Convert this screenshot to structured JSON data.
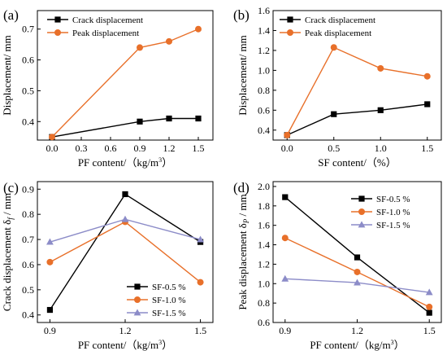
{
  "figure": {
    "colors": {
      "black": "#000000",
      "orange": "#E8702A",
      "blue": "#8C8CC8"
    }
  },
  "chart_data": [
    {
      "panel_label": "(a)",
      "type": "line",
      "xlabel": "PF content/（kg/m³）",
      "ylabel": "Displacement/ mm",
      "xlim": [
        -0.15,
        1.65
      ],
      "ylim": [
        0.34,
        0.76
      ],
      "xticks": [
        0.0,
        0.3,
        0.6,
        0.9,
        1.2,
        1.5
      ],
      "xtick_labels": [
        "0.0",
        "0.3",
        "0.6",
        "0.9",
        "1.2",
        "1.5"
      ],
      "yticks": [
        0.4,
        0.5,
        0.6,
        0.7
      ],
      "ytick_labels": [
        "0.4",
        "0.5",
        "0.6",
        "0.7"
      ],
      "legend_position": "top-left",
      "series": [
        {
          "name": "Crack displacement",
          "color": "#000000",
          "marker": "square",
          "x": [
            0.0,
            0.9,
            1.2,
            1.5
          ],
          "y": [
            0.35,
            0.4,
            0.41,
            0.41
          ]
        },
        {
          "name": "Peak displacement",
          "color": "#E8702A",
          "marker": "circle",
          "x": [
            0.0,
            0.9,
            1.2,
            1.5
          ],
          "y": [
            0.35,
            0.64,
            0.66,
            0.7
          ]
        }
      ]
    },
    {
      "panel_label": "(b)",
      "type": "line",
      "xlabel": "SF content/（%）",
      "ylabel": "Displacement/ mm",
      "xlim": [
        -0.15,
        1.65
      ],
      "ylim": [
        0.3,
        1.6
      ],
      "xticks": [
        0.0,
        0.5,
        1.0,
        1.5
      ],
      "xtick_labels": [
        "0.0",
        "0.5",
        "1.0",
        "1.5"
      ],
      "yticks": [
        0.4,
        0.6,
        0.8,
        1.0,
        1.2,
        1.4,
        1.6
      ],
      "ytick_labels": [
        "0.4",
        "0.6",
        "0.8",
        "1.0",
        "1.2",
        "1.4",
        "1.6"
      ],
      "legend_position": "top-left",
      "series": [
        {
          "name": "Crack displacement",
          "color": "#000000",
          "marker": "square",
          "x": [
            0.0,
            0.5,
            1.0,
            1.5
          ],
          "y": [
            0.35,
            0.56,
            0.6,
            0.66
          ]
        },
        {
          "name": "Peak displacement",
          "color": "#E8702A",
          "marker": "circle",
          "x": [
            0.0,
            0.5,
            1.0,
            1.5
          ],
          "y": [
            0.35,
            1.23,
            1.02,
            0.94
          ]
        }
      ]
    },
    {
      "panel_label": "(c)",
      "type": "line",
      "xlabel": "PF content/（kg/m³）",
      "ylabel": "Crack displacement δ_f / mm",
      "xlim": [
        0.85,
        1.55
      ],
      "ylim": [
        0.37,
        0.93
      ],
      "xticks": [
        0.9,
        1.2,
        1.5
      ],
      "xtick_labels": [
        "0.9",
        "1.2",
        "1.5"
      ],
      "yticks": [
        0.4,
        0.5,
        0.6,
        0.7,
        0.8,
        0.9
      ],
      "ytick_labels": [
        "0.4",
        "0.5",
        "0.6",
        "0.7",
        "0.8",
        "0.9"
      ],
      "legend_position": "bottom-right",
      "series": [
        {
          "name": "SF-0.5 %",
          "color": "#000000",
          "marker": "square",
          "x": [
            0.9,
            1.2,
            1.5
          ],
          "y": [
            0.42,
            0.88,
            0.69
          ]
        },
        {
          "name": "SF-1.0 %",
          "color": "#E8702A",
          "marker": "circle",
          "x": [
            0.9,
            1.2,
            1.5
          ],
          "y": [
            0.61,
            0.77,
            0.53
          ]
        },
        {
          "name": "SF-1.5 %",
          "color": "#8C8CC8",
          "marker": "triangle",
          "x": [
            0.9,
            1.2,
            1.5
          ],
          "y": [
            0.69,
            0.78,
            0.7
          ]
        }
      ]
    },
    {
      "panel_label": "(d)",
      "type": "line",
      "xlabel": "PF content/（kg/m³）",
      "ylabel": "Peak displacement δ_P / mm",
      "xlim": [
        0.85,
        1.55
      ],
      "ylim": [
        0.6,
        2.05
      ],
      "xticks": [
        0.9,
        1.2,
        1.5
      ],
      "xtick_labels": [
        "0.9",
        "1.2",
        "1.5"
      ],
      "yticks": [
        0.6,
        0.8,
        1.0,
        1.2,
        1.4,
        1.6,
        1.8,
        2.0
      ],
      "ytick_labels": [
        "0.6",
        "0.8",
        "1.0",
        "1.2",
        "1.4",
        "1.6",
        "1.8",
        "2.0"
      ],
      "legend_position": "top-right",
      "series": [
        {
          "name": "SF-0.5 %",
          "color": "#000000",
          "marker": "square",
          "x": [
            0.9,
            1.2,
            1.5
          ],
          "y": [
            1.89,
            1.27,
            0.7
          ]
        },
        {
          "name": "SF-1.0 %",
          "color": "#E8702A",
          "marker": "circle",
          "x": [
            0.9,
            1.2,
            1.5
          ],
          "y": [
            1.47,
            1.12,
            0.76
          ]
        },
        {
          "name": "SF-1.5 %",
          "color": "#8C8CC8",
          "marker": "triangle",
          "x": [
            0.9,
            1.2,
            1.5
          ],
          "y": [
            1.05,
            1.01,
            0.91
          ]
        }
      ]
    }
  ]
}
